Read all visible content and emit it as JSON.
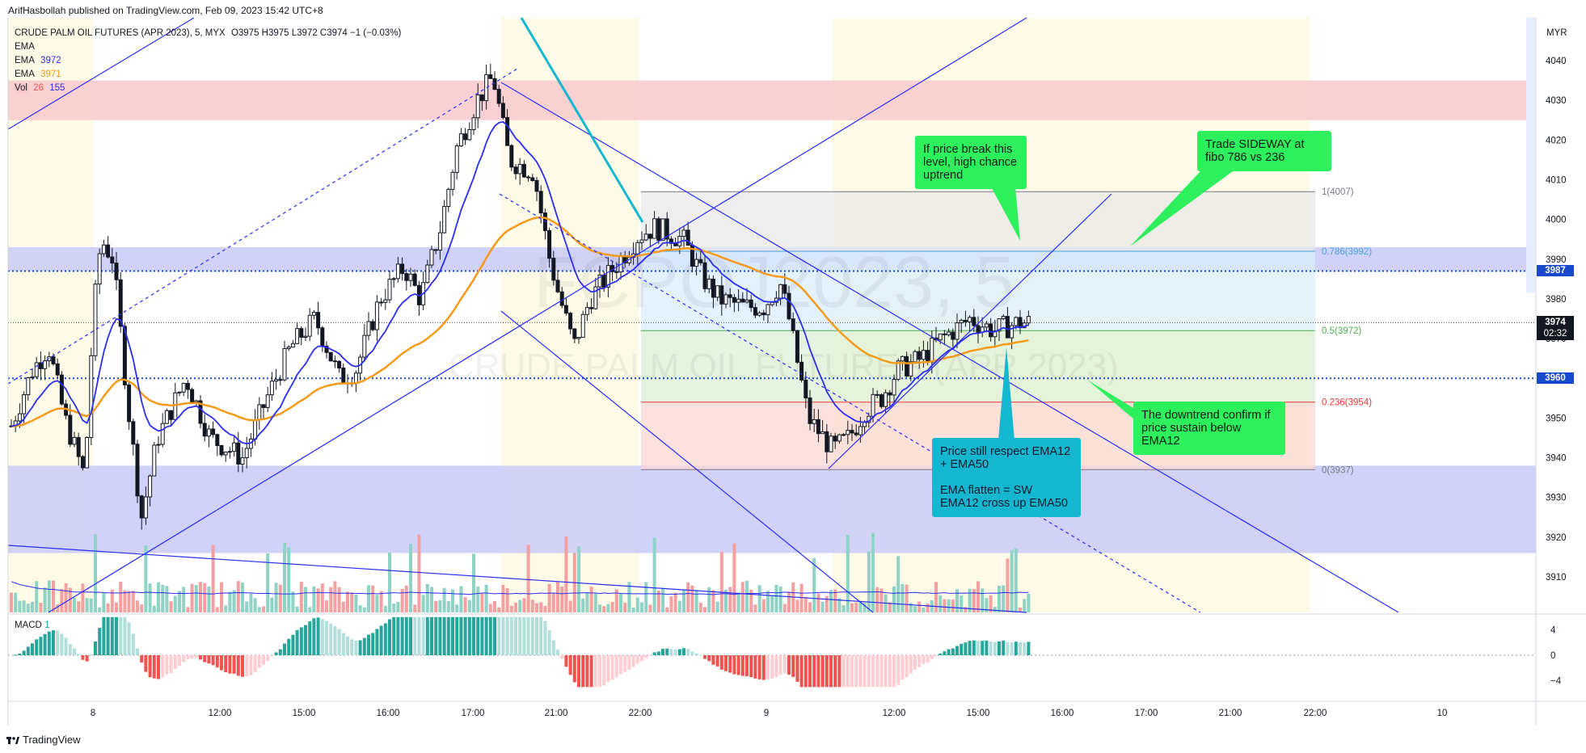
{
  "header": {
    "publisher": "ArifHasbollah published on TradingView.com, Feb 09, 2023 15:42 UTC+8"
  },
  "legend": {
    "symbol": "CRUDE PALM OIL FUTURES (APR 2023), 5, MYX",
    "ohlc": "O3975 H3975 L3972 C3974 −1 (−0.03%)",
    "ema_label": "EMA",
    "ema12_value": "3972",
    "ema50_value": "3971",
    "vol_label": "Vol",
    "vol_value1": "26",
    "vol_value2": "155",
    "colors": {
      "ema12": "#2a2ef5",
      "ema50": "#f59a1a",
      "vol_up": "#26a69a",
      "vol_down": "#ef5350"
    }
  },
  "watermark": {
    "symbol": "FCPOJ2023, 5",
    "name": "CRUDE PALM OIL FUTURES (APR 2023)"
  },
  "macd_legend": {
    "label": "MACD",
    "value": "1"
  },
  "footer": {
    "brand": "TradingView"
  },
  "price_axis": {
    "currency": "MYR",
    "ticks": [
      "4040",
      "4030",
      "4020",
      "4010",
      "4000",
      "3990",
      "3980",
      "3970",
      "3960",
      "3950",
      "3940",
      "3930",
      "3920",
      "3910"
    ],
    "tags": [
      {
        "label": "3987",
        "color": "#1848cc"
      },
      {
        "label": "3974",
        "sub": "02:32",
        "color": "#131722"
      },
      {
        "label": "3960",
        "color": "#1848cc"
      }
    ]
  },
  "macd_axis": {
    "ticks": [
      "4",
      "0",
      "−4"
    ]
  },
  "time_axis": {
    "ticks": [
      "8",
      "12:00",
      "15:00",
      "16:00",
      "17:00",
      "21:00",
      "22:00",
      "9",
      "12:00",
      "15:00",
      "16:00",
      "17:00",
      "21:00",
      "22:00",
      "10"
    ]
  },
  "fibo": {
    "levels": [
      {
        "label": "1(4007)",
        "color": "#787b86"
      },
      {
        "label": "0.786(3992)",
        "color": "#45a4dd"
      },
      {
        "label": "0.5(3972)",
        "color": "#4caf50"
      },
      {
        "label": "0.236(3954)",
        "color": "#e53935"
      },
      {
        "label": "0(3937)",
        "color": "#787b86"
      }
    ]
  },
  "callouts": {
    "breakout": "If price break this level, high chance uptrend",
    "sideway": "Trade SIDEWAY at fibo 786 vs 236",
    "downtrend": "The downtrend confirm if price sustain below EMA12",
    "respect": "Price still respect EMA12 + EMA50\n\nEMA flatten = SW\nEMA12 cross up EMA50"
  },
  "chart_data": {
    "type": "candlestick",
    "series": [
      {
        "name": "EMA",
        "value": 3972
      },
      {
        "name": "EMA",
        "value": 3971
      }
    ],
    "last_close": 3974,
    "ylim": [
      3902,
      4044
    ],
    "macd_ylim": [
      -5,
      6
    ],
    "fib_levels": [
      {
        "ratio": 1,
        "price": 4007
      },
      {
        "ratio": 0.786,
        "price": 3992
      },
      {
        "ratio": 0.5,
        "price": 3972
      },
      {
        "ratio": 0.236,
        "price": 3954
      },
      {
        "ratio": 0,
        "price": 3937
      }
    ],
    "horizontal_levels": [
      3987,
      3960
    ],
    "zones": [
      {
        "from": 4025,
        "to": 4035,
        "color": "#f8c9cc"
      },
      {
        "from": 3916,
        "to": 3938,
        "color": "#c9caf8"
      },
      {
        "from": 3987,
        "to": 3993,
        "color": "#c9caf8"
      }
    ]
  }
}
